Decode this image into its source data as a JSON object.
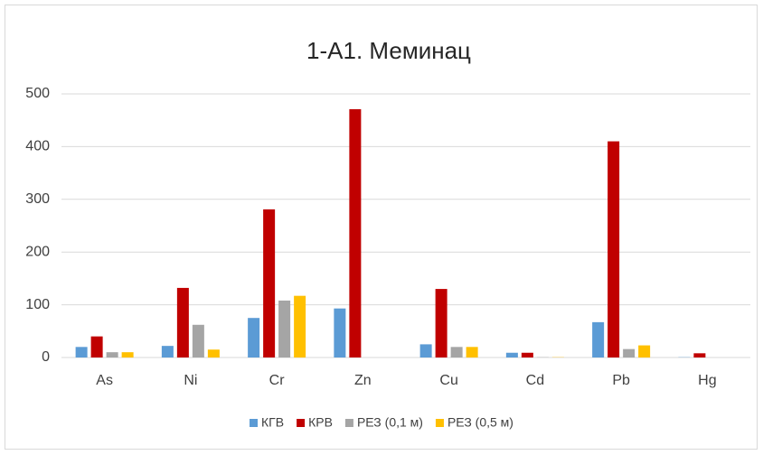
{
  "chart_data": {
    "type": "bar",
    "title": "1-А1. Меминац",
    "categories": [
      "As",
      "Ni",
      "Cr",
      "Zn",
      "Cu",
      "Cd",
      "Pb",
      "Hg"
    ],
    "series": [
      {
        "name": "КГВ",
        "color": "#5b9bd5",
        "values": [
          20,
          22,
          75,
          93,
          25,
          9,
          67,
          0.5
        ]
      },
      {
        "name": "КРВ",
        "color": "#c00000",
        "values": [
          40,
          132,
          281,
          471,
          130,
          9,
          410,
          8
        ]
      },
      {
        "name": "РЕЗ (0,1 м)",
        "color": "#a5a5a5",
        "values": [
          10,
          62,
          108,
          0,
          20,
          0.5,
          16,
          0
        ]
      },
      {
        "name": "РЕЗ (0,5 м)",
        "color": "#ffc000",
        "values": [
          10,
          15,
          117,
          0,
          20,
          0.5,
          23,
          0
        ]
      }
    ],
    "ylim": [
      0,
      500
    ],
    "yticks": [
      0,
      100,
      200,
      300,
      400,
      500
    ],
    "grid": true,
    "legend": "bottom"
  }
}
